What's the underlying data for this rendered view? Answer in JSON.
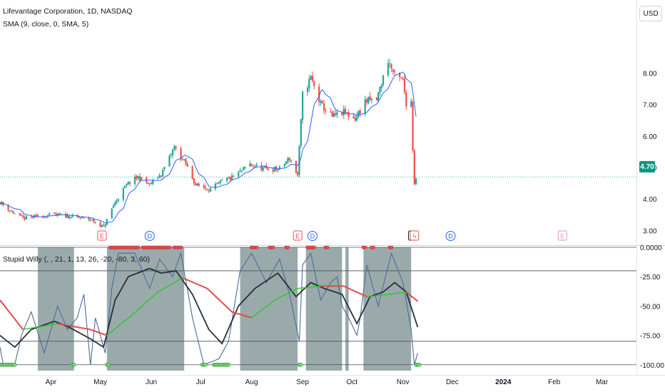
{
  "header": {
    "symbol_line": "Lifevantage Corporation, 1D, NASDAQ",
    "sma_line": "SMA (9, close, 0, SMA, 5)",
    "indicator_line": "Stupid Willy (, , 21, 1, 13, 26, -20, -80, 3, 60)",
    "currency": "USD",
    "last_price_tag": "4.70"
  },
  "colors": {
    "up": "#26a69a",
    "down": "#ef5350",
    "sma": "#2962ff",
    "willr": "#4a6d99",
    "fast_avg": "#2a2e39",
    "slow_avg_red": "#e04848",
    "slow_avg_green": "#22cc22",
    "shade": "#95a5a6",
    "last_price": "#089981"
  },
  "events": [
    {
      "label": "E",
      "date": "2023-05-02",
      "color": "#ef5350"
    },
    {
      "label": "D",
      "date": "2023-05-31",
      "color": "#2962ff"
    },
    {
      "label": "E",
      "date": "2023-08-29",
      "color": "#ef5350"
    },
    {
      "label": "D",
      "date": "2023-09-07",
      "color": "#2962ff"
    },
    {
      "label": "E",
      "date": "2023-11-07",
      "color": "#131722"
    },
    {
      "label": "ϟ",
      "date": "2023-11-08",
      "color": "#ef5350"
    },
    {
      "label": "D",
      "date": "2023-11-30",
      "color": "#2962ff"
    },
    {
      "label": "E",
      "date": "2024-02-06",
      "color": "#e58fd5"
    }
  ],
  "chart_data": [
    {
      "type": "candlestick",
      "title": "Lifevantage Corporation, 1D, NASDAQ",
      "x_ticks": [
        "Apr",
        "May",
        "Jun",
        "Jul",
        "Aug",
        "Sep",
        "Oct",
        "Nov",
        "Dec",
        "2024",
        "Feb",
        "Mar"
      ],
      "x_tick_dates": [
        "2023-04-01",
        "2023-05-01",
        "2023-06-01",
        "2023-07-01",
        "2023-08-01",
        "2023-09-01",
        "2023-10-01",
        "2023-11-01",
        "2023-12-01",
        "2024-01-01",
        "2024-02-01",
        "2024-03-01"
      ],
      "x_range": [
        "2023-03-01",
        "2024-03-22"
      ],
      "y_ticks": [
        "3.00",
        "4.00",
        "5.00",
        "6.00",
        "7.00",
        "8.00"
      ],
      "ylim": [
        2.85,
        9.3
      ],
      "last_price": 4.7,
      "sma_period": 9,
      "anchors": [
        [
          "2023-03-01",
          3.9
        ],
        [
          "2023-03-08",
          3.6
        ],
        [
          "2023-03-15",
          3.38
        ],
        [
          "2023-03-24",
          3.45
        ],
        [
          "2023-04-03",
          3.5
        ],
        [
          "2023-04-12",
          3.45
        ],
        [
          "2023-04-25",
          3.35
        ],
        [
          "2023-05-03",
          3.1
        ],
        [
          "2023-05-09",
          3.8
        ],
        [
          "2023-05-17",
          4.45
        ],
        [
          "2023-05-24",
          4.7
        ],
        [
          "2023-05-31",
          4.45
        ],
        [
          "2023-06-07",
          4.8
        ],
        [
          "2023-06-12",
          5.3
        ],
        [
          "2023-06-15",
          5.65
        ],
        [
          "2023-06-22",
          5.1
        ],
        [
          "2023-06-28",
          4.45
        ],
        [
          "2023-07-07",
          4.3
        ],
        [
          "2023-07-14",
          4.55
        ],
        [
          "2023-07-21",
          4.7
        ],
        [
          "2023-07-31",
          5.1
        ],
        [
          "2023-08-08",
          4.95
        ],
        [
          "2023-08-18",
          4.95
        ],
        [
          "2023-08-24",
          5.3
        ],
        [
          "2023-08-29",
          4.75
        ],
        [
          "2023-09-01",
          7.3
        ],
        [
          "2023-09-06",
          7.85
        ],
        [
          "2023-09-12",
          7.0
        ],
        [
          "2023-09-19",
          6.6
        ],
        [
          "2023-09-26",
          6.75
        ],
        [
          "2023-10-03",
          6.55
        ],
        [
          "2023-10-09",
          7.1
        ],
        [
          "2023-10-16",
          7.15
        ],
        [
          "2023-10-23",
          8.4
        ],
        [
          "2023-10-27",
          7.9
        ],
        [
          "2023-11-01",
          7.75
        ],
        [
          "2023-11-03",
          7.05
        ],
        [
          "2023-11-06",
          7.1
        ],
        [
          "2023-11-07",
          5.6
        ],
        [
          "2023-11-08",
          4.5
        ],
        [
          "2023-11-09",
          4.7
        ]
      ]
    },
    {
      "type": "line",
      "title": "Stupid Willy (, , 21, 1, 13, 26, -20, -80, 3, 60)",
      "y_ticks": [
        "0.0000",
        "-25.00",
        "-50.00",
        "-75.00",
        "-100.00"
      ],
      "ylim": [
        -105,
        0
      ],
      "levels": [
        0,
        -20,
        -80,
        -100
      ],
      "williams_r_anchors": [
        [
          "2023-03-01",
          -85
        ],
        [
          "2023-03-03",
          -100
        ],
        [
          "2023-03-10",
          -100
        ],
        [
          "2023-03-14",
          -75
        ],
        [
          "2023-03-20",
          -55
        ],
        [
          "2023-03-28",
          -90
        ],
        [
          "2023-04-05",
          -50
        ],
        [
          "2023-04-11",
          -70
        ],
        [
          "2023-04-17",
          -60
        ],
        [
          "2023-04-21",
          -40
        ],
        [
          "2023-04-25",
          -100
        ],
        [
          "2023-04-28",
          -60
        ],
        [
          "2023-05-04",
          -90
        ],
        [
          "2023-05-08",
          -35
        ],
        [
          "2023-05-12",
          -5
        ],
        [
          "2023-05-22",
          -5
        ],
        [
          "2023-05-31",
          -35
        ],
        [
          "2023-06-06",
          -10
        ],
        [
          "2023-06-14",
          -25
        ],
        [
          "2023-06-19",
          -5
        ],
        [
          "2023-06-26",
          -60
        ],
        [
          "2023-07-03",
          -100
        ],
        [
          "2023-07-12",
          -95
        ],
        [
          "2023-07-18",
          -80
        ],
        [
          "2023-07-25",
          -20
        ],
        [
          "2023-08-01",
          -5
        ],
        [
          "2023-08-10",
          -30
        ],
        [
          "2023-08-18",
          -10
        ],
        [
          "2023-08-24",
          -40
        ],
        [
          "2023-08-30",
          -80
        ],
        [
          "2023-09-01",
          -15
        ],
        [
          "2023-09-06",
          -5
        ],
        [
          "2023-09-12",
          -45
        ],
        [
          "2023-09-18",
          -30
        ],
        [
          "2023-09-22",
          -25
        ],
        [
          "2023-09-25",
          -50
        ],
        [
          "2023-09-29",
          -60
        ],
        [
          "2023-10-04",
          -75
        ],
        [
          "2023-10-06",
          -60
        ],
        [
          "2023-10-10",
          -15
        ],
        [
          "2023-10-17",
          -50
        ],
        [
          "2023-10-25",
          -5
        ],
        [
          "2023-11-01",
          -30
        ],
        [
          "2023-11-06",
          -70
        ],
        [
          "2023-11-08",
          -100
        ],
        [
          "2023-11-10",
          -90
        ]
      ],
      "fast_avg_anchors": [
        [
          "2023-03-01",
          -75
        ],
        [
          "2023-03-10",
          -85
        ],
        [
          "2023-03-20",
          -70
        ],
        [
          "2023-04-03",
          -63
        ],
        [
          "2023-04-12",
          -68
        ],
        [
          "2023-04-25",
          -78
        ],
        [
          "2023-05-03",
          -85
        ],
        [
          "2023-05-10",
          -45
        ],
        [
          "2023-05-18",
          -25
        ],
        [
          "2023-05-31",
          -18
        ],
        [
          "2023-06-07",
          -22
        ],
        [
          "2023-06-16",
          -20
        ],
        [
          "2023-06-26",
          -40
        ],
        [
          "2023-07-06",
          -70
        ],
        [
          "2023-07-14",
          -82
        ],
        [
          "2023-07-24",
          -50
        ],
        [
          "2023-08-03",
          -35
        ],
        [
          "2023-08-17",
          -22
        ],
        [
          "2023-08-28",
          -42
        ],
        [
          "2023-09-06",
          -30
        ],
        [
          "2023-09-14",
          -35
        ],
        [
          "2023-09-25",
          -40
        ],
        [
          "2023-10-04",
          -65
        ],
        [
          "2023-10-12",
          -42
        ],
        [
          "2023-10-20",
          -38
        ],
        [
          "2023-10-27",
          -30
        ],
        [
          "2023-11-03",
          -38
        ],
        [
          "2023-11-10",
          -68
        ]
      ],
      "slow_avg_anchors": [
        [
          "2023-03-01",
          -45
        ],
        [
          "2023-03-15",
          -70
        ],
        [
          "2023-04-05",
          -65
        ],
        [
          "2023-04-25",
          -70
        ],
        [
          "2023-05-05",
          -75
        ],
        [
          "2023-05-20",
          -58
        ],
        [
          "2023-06-05",
          -38
        ],
        [
          "2023-06-20",
          -26
        ],
        [
          "2023-07-05",
          -35
        ],
        [
          "2023-07-20",
          -55
        ],
        [
          "2023-08-01",
          -60
        ],
        [
          "2023-08-15",
          -45
        ],
        [
          "2023-08-29",
          -35
        ],
        [
          "2023-09-12",
          -33
        ],
        [
          "2023-09-26",
          -33
        ],
        [
          "2023-10-10",
          -42
        ],
        [
          "2023-10-24",
          -40
        ],
        [
          "2023-11-03",
          -38
        ],
        [
          "2023-11-10",
          -46
        ]
      ],
      "shaded_ranges": [
        [
          "2023-03-24",
          "2023-04-15"
        ],
        [
          "2023-05-05",
          "2023-06-21"
        ],
        [
          "2023-07-25",
          "2023-08-29"
        ],
        [
          "2023-09-03",
          "2023-09-25"
        ],
        [
          "2023-09-27",
          "2023-09-29"
        ],
        [
          "2023-10-08",
          "2023-11-06"
        ]
      ],
      "top_marker_ranges": [
        [
          "2023-05-07",
          "2023-05-24"
        ],
        [
          "2023-05-27",
          "2023-06-12"
        ],
        [
          "2023-06-15",
          "2023-06-19"
        ],
        [
          "2023-08-01",
          "2023-08-04"
        ],
        [
          "2023-08-12",
          "2023-08-14"
        ],
        [
          "2023-08-22",
          "2023-08-23"
        ],
        [
          "2023-09-04",
          "2023-09-08"
        ],
        [
          "2023-09-15",
          "2023-09-16"
        ],
        [
          "2023-10-08",
          "2023-10-09"
        ],
        [
          "2023-10-13",
          "2023-10-14"
        ],
        [
          "2023-10-24",
          "2023-10-25"
        ]
      ],
      "bottom_marker_ranges": [
        [
          "2023-03-01",
          "2023-03-10"
        ],
        [
          "2023-04-14",
          "2023-04-15"
        ],
        [
          "2023-05-05",
          "2023-05-06"
        ],
        [
          "2023-07-02",
          "2023-07-04"
        ],
        [
          "2023-07-09",
          "2023-07-18"
        ],
        [
          "2023-08-30",
          "2023-08-31"
        ],
        [
          "2023-11-09",
          "2023-11-11"
        ]
      ]
    }
  ]
}
